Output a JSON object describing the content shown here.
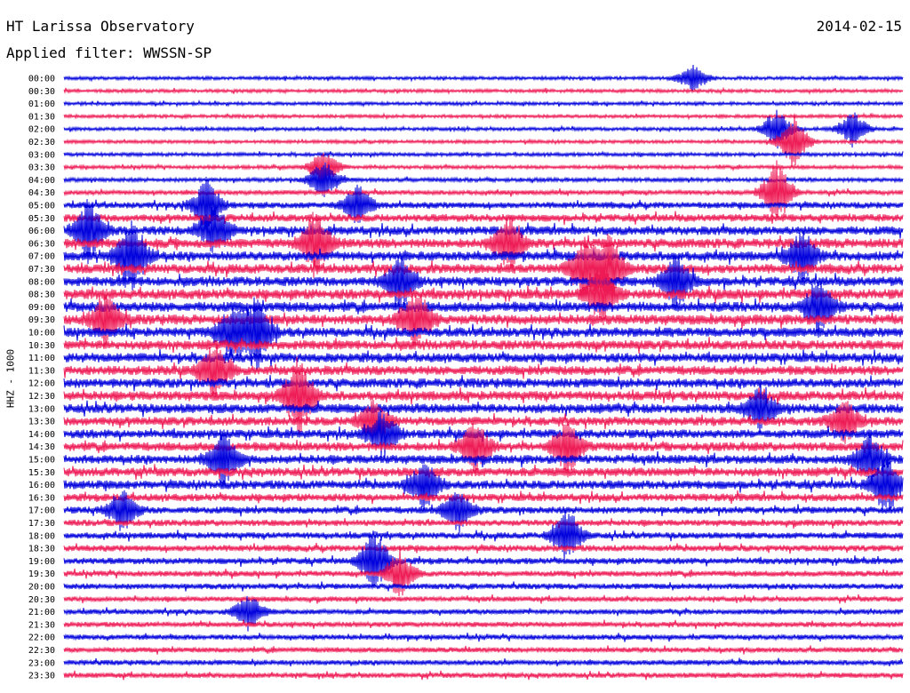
{
  "header": {
    "station": "HT Larissa Observatory",
    "date": "2014-02-15",
    "filter": "Applied filter: WWSSN-SP",
    "channel": "HHZ - 1000"
  },
  "colors": {
    "trace_even": "#0000dd",
    "trace_odd": "#ee1a55",
    "text": "#000000"
  },
  "chart_data": {
    "type": "line",
    "title": "HT Larissa Observatory",
    "ylabel": "HHZ - 1000",
    "rows": [
      {
        "label": "00:00",
        "color": "blue",
        "level": 0.1
      },
      {
        "label": "00:30",
        "color": "red",
        "level": 0.1
      },
      {
        "label": "01:00",
        "color": "blue",
        "level": 0.1
      },
      {
        "label": "01:30",
        "color": "red",
        "level": 0.1
      },
      {
        "label": "02:00",
        "color": "blue",
        "level": 0.1
      },
      {
        "label": "02:30",
        "color": "red",
        "level": 0.1
      },
      {
        "label": "03:00",
        "color": "blue",
        "level": 0.12
      },
      {
        "label": "03:30",
        "color": "red",
        "level": 0.12
      },
      {
        "label": "04:00",
        "color": "blue",
        "level": 0.15
      },
      {
        "label": "04:30",
        "color": "red",
        "level": 0.2
      },
      {
        "label": "05:00",
        "color": "blue",
        "level": 0.35
      },
      {
        "label": "05:30",
        "color": "red",
        "level": 0.45
      },
      {
        "label": "06:00",
        "color": "blue",
        "level": 0.55
      },
      {
        "label": "06:30",
        "color": "red",
        "level": 0.6
      },
      {
        "label": "07:00",
        "color": "blue",
        "level": 0.6
      },
      {
        "label": "07:30",
        "color": "red",
        "level": 0.6
      },
      {
        "label": "08:00",
        "color": "blue",
        "level": 0.6
      },
      {
        "label": "08:30",
        "color": "red",
        "level": 0.65
      },
      {
        "label": "09:00",
        "color": "blue",
        "level": 0.65
      },
      {
        "label": "09:30",
        "color": "red",
        "level": 0.65
      },
      {
        "label": "10:00",
        "color": "blue",
        "level": 0.6
      },
      {
        "label": "10:30",
        "color": "red",
        "level": 0.6
      },
      {
        "label": "11:00",
        "color": "blue",
        "level": 0.6
      },
      {
        "label": "11:30",
        "color": "red",
        "level": 0.6
      },
      {
        "label": "12:00",
        "color": "blue",
        "level": 0.6
      },
      {
        "label": "12:30",
        "color": "red",
        "level": 0.6
      },
      {
        "label": "13:00",
        "color": "blue",
        "level": 0.6
      },
      {
        "label": "13:30",
        "color": "red",
        "level": 0.55
      },
      {
        "label": "14:00",
        "color": "blue",
        "level": 0.55
      },
      {
        "label": "14:30",
        "color": "red",
        "level": 0.55
      },
      {
        "label": "15:00",
        "color": "blue",
        "level": 0.55
      },
      {
        "label": "15:30",
        "color": "red",
        "level": 0.55
      },
      {
        "label": "16:00",
        "color": "blue",
        "level": 0.55
      },
      {
        "label": "16:30",
        "color": "red",
        "level": 0.45
      },
      {
        "label": "17:00",
        "color": "blue",
        "level": 0.4
      },
      {
        "label": "17:30",
        "color": "red",
        "level": 0.35
      },
      {
        "label": "18:00",
        "color": "blue",
        "level": 0.35
      },
      {
        "label": "18:30",
        "color": "red",
        "level": 0.35
      },
      {
        "label": "19:00",
        "color": "blue",
        "level": 0.35
      },
      {
        "label": "19:30",
        "color": "red",
        "level": 0.3
      },
      {
        "label": "20:00",
        "color": "blue",
        "level": 0.3
      },
      {
        "label": "20:30",
        "color": "red",
        "level": 0.25
      },
      {
        "label": "21:00",
        "color": "blue",
        "level": 0.25
      },
      {
        "label": "21:30",
        "color": "red",
        "level": 0.25
      },
      {
        "label": "22:00",
        "color": "blue",
        "level": 0.25
      },
      {
        "label": "22:30",
        "color": "red",
        "level": 0.25
      },
      {
        "label": "23:00",
        "color": "blue",
        "level": 0.25
      },
      {
        "label": "23:30",
        "color": "red",
        "level": 0.25
      }
    ],
    "events": [
      {
        "row": "00:00",
        "at": 0.75,
        "strength": 0.6
      },
      {
        "row": "02:00",
        "at": 0.85,
        "strength": 0.9
      },
      {
        "row": "02:00",
        "at": 0.94,
        "strength": 0.8
      },
      {
        "row": "02:30",
        "at": 0.87,
        "strength": 1.2
      },
      {
        "row": "03:30",
        "at": 0.31,
        "strength": 0.8
      },
      {
        "row": "04:00",
        "at": 0.31,
        "strength": 1.0
      },
      {
        "row": "04:30",
        "at": 0.85,
        "strength": 1.5
      },
      {
        "row": "05:00",
        "at": 0.17,
        "strength": 1.2
      },
      {
        "row": "05:00",
        "at": 0.35,
        "strength": 0.9
      },
      {
        "row": "06:00",
        "at": 0.03,
        "strength": 1.4
      },
      {
        "row": "06:00",
        "at": 0.18,
        "strength": 1.2
      },
      {
        "row": "06:30",
        "at": 0.3,
        "strength": 1.5
      },
      {
        "row": "06:30",
        "at": 0.53,
        "strength": 1.3
      },
      {
        "row": "07:00",
        "at": 0.08,
        "strength": 2.0
      },
      {
        "row": "07:00",
        "at": 0.88,
        "strength": 1.2
      },
      {
        "row": "07:30",
        "at": 0.62,
        "strength": 1.4
      },
      {
        "row": "07:30",
        "at": 0.65,
        "strength": 1.5
      },
      {
        "row": "08:00",
        "at": 0.4,
        "strength": 1.3
      },
      {
        "row": "08:00",
        "at": 0.73,
        "strength": 1.3
      },
      {
        "row": "08:30",
        "at": 0.64,
        "strength": 1.4
      },
      {
        "row": "09:00",
        "at": 0.9,
        "strength": 1.3
      },
      {
        "row": "09:30",
        "at": 0.05,
        "strength": 1.2
      },
      {
        "row": "09:30",
        "at": 0.42,
        "strength": 1.4
      },
      {
        "row": "10:00",
        "at": 0.2,
        "strength": 1.3
      },
      {
        "row": "10:00",
        "at": 0.23,
        "strength": 1.6
      },
      {
        "row": "11:30",
        "at": 0.18,
        "strength": 1.4
      },
      {
        "row": "12:30",
        "at": 0.28,
        "strength": 1.8
      },
      {
        "row": "13:00",
        "at": 0.83,
        "strength": 1.1
      },
      {
        "row": "13:30",
        "at": 0.37,
        "strength": 1.0
      },
      {
        "row": "13:30",
        "at": 0.93,
        "strength": 1.0
      },
      {
        "row": "14:00",
        "at": 0.38,
        "strength": 1.1
      },
      {
        "row": "14:30",
        "at": 0.49,
        "strength": 1.2
      },
      {
        "row": "14:30",
        "at": 0.6,
        "strength": 1.3
      },
      {
        "row": "15:00",
        "at": 0.19,
        "strength": 1.3
      },
      {
        "row": "15:00",
        "at": 0.96,
        "strength": 1.2
      },
      {
        "row": "16:00",
        "at": 0.43,
        "strength": 1.1
      },
      {
        "row": "16:00",
        "at": 0.98,
        "strength": 1.4
      },
      {
        "row": "17:00",
        "at": 0.07,
        "strength": 1.0
      },
      {
        "row": "17:00",
        "at": 0.47,
        "strength": 1.0
      },
      {
        "row": "18:00",
        "at": 0.6,
        "strength": 1.2
      },
      {
        "row": "19:00",
        "at": 0.37,
        "strength": 1.4
      },
      {
        "row": "19:30",
        "at": 0.4,
        "strength": 1.1
      },
      {
        "row": "21:00",
        "at": 0.22,
        "strength": 0.8
      }
    ]
  }
}
